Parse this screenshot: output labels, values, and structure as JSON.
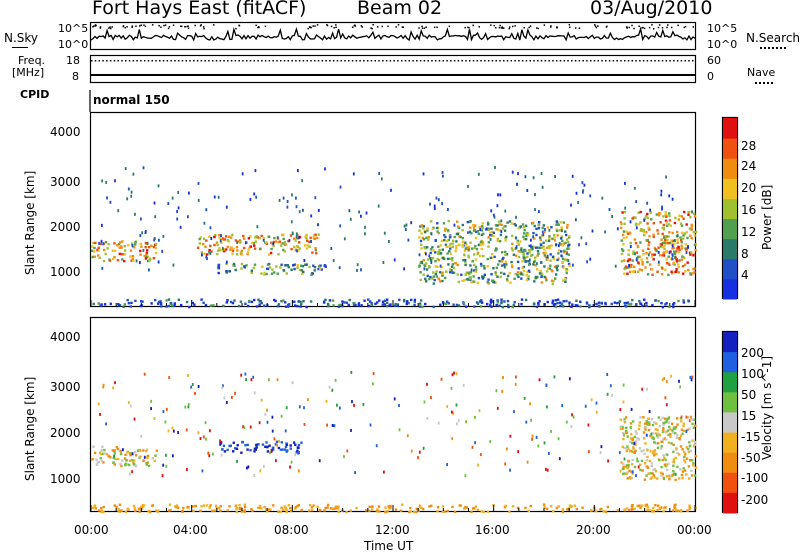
{
  "header": {
    "station": "Fort Hays East (fitACF)",
    "beam": "Beam 02",
    "date": "03/Aug/2010"
  },
  "side_labels": {
    "nsky": "N.Sky",
    "nsearch": "N.Search",
    "freq": "Freq.",
    "freq_unit": "[MHz]",
    "nave": "Nave",
    "cpid": "CPID",
    "cpid_value": "normal 150"
  },
  "noise_ticks": {
    "left_top": "10^5",
    "left_bottom": "10^0",
    "right_top": "10^5",
    "right_bottom": "10^0"
  },
  "freq_ticks": {
    "left_top": "18",
    "left_bottom": "8",
    "right_top": "60",
    "right_bottom": "0"
  },
  "x_axis": {
    "label": "Time UT",
    "ticks": [
      "00:00",
      "04:00",
      "08:00",
      "12:00",
      "16:00",
      "20:00",
      "00:00"
    ]
  },
  "colors": {
    "power_scale": [
      "#1430e0",
      "#2050c8",
      "#2a7a6a",
      "#50a050",
      "#a0c030",
      "#f0c020",
      "#f08c10",
      "#f05010",
      "#e01010"
    ],
    "velocity_scale": [
      "#1420c0",
      "#2060e0",
      "#20a040",
      "#70c040",
      "#c8c8c8",
      "#f0b020",
      "#f08c10",
      "#f05010",
      "#e01010"
    ]
  },
  "chart_data": [
    {
      "type": "heatmap",
      "title": "",
      "xlabel": "Time UT",
      "ylabel": "Slant Range [km]",
      "xlim": [
        0,
        24
      ],
      "ylim": [
        180,
        4500
      ],
      "yticks": [
        "1000",
        "2000",
        "3000",
        "4000"
      ],
      "colorbar": {
        "label": "Power [dB]",
        "ticks": [
          "4",
          "8",
          "12",
          "16",
          "20",
          "24",
          "28"
        ]
      },
      "features": [
        {
          "t": [
            0.0,
            2.6
          ],
          "range": [
            1200,
            1650
          ],
          "level": "high",
          "note": "band of echoes"
        },
        {
          "t": [
            4.2,
            9.0
          ],
          "range": [
            1350,
            1800
          ],
          "level": "high"
        },
        {
          "t": [
            5.0,
            9.3
          ],
          "range": [
            900,
            1150
          ],
          "level": "mid"
        },
        {
          "t": [
            13.0,
            19.0
          ],
          "range": [
            700,
            2100
          ],
          "level": "mid-high"
        },
        {
          "t": [
            21.0,
            24.0
          ],
          "range": [
            900,
            2300
          ],
          "level": "high"
        },
        {
          "t": [
            0.0,
            24.0
          ],
          "range": [
            180,
            350
          ],
          "level": "low-mid"
        }
      ]
    },
    {
      "type": "heatmap",
      "title": "",
      "xlabel": "Time UT",
      "ylabel": "Slant Range [km]",
      "xlim": [
        0,
        24
      ],
      "ylim": [
        180,
        4500
      ],
      "yticks": [
        "1000",
        "2000",
        "3000",
        "4000"
      ],
      "colorbar": {
        "label": "Velocity [m s^-1]",
        "ticks": [
          "200",
          "100",
          "50",
          "15",
          "-15",
          "-50",
          "-100",
          "-200"
        ]
      },
      "features": [
        {
          "t": [
            0.0,
            2.6
          ],
          "range": [
            1200,
            1650
          ],
          "velocity": "~0 to +50"
        },
        {
          "t": [
            5.0,
            8.5
          ],
          "range": [
            1500,
            1750
          ],
          "velocity": "+100 to +200"
        },
        {
          "t": [
            21.0,
            24.0
          ],
          "range": [
            900,
            2300
          ],
          "velocity": "-200 to +50"
        },
        {
          "t": [
            0.0,
            24.0
          ],
          "range": [
            180,
            350
          ],
          "velocity": "-50 to -100"
        }
      ]
    }
  ]
}
